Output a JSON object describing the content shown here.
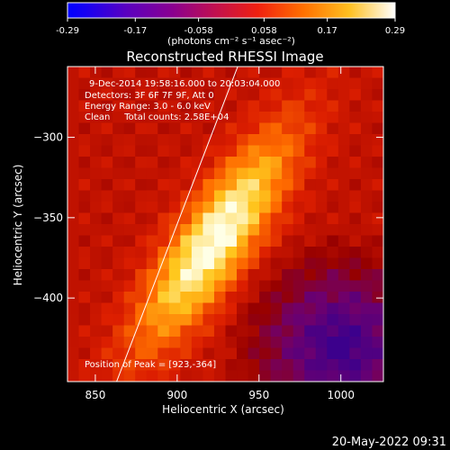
{
  "chart_data": {
    "type": "heatmap",
    "title": "Reconstructed RHESSI Image",
    "colorbar": {
      "ticks": [
        "-0.29",
        "-0.17",
        "-0.058",
        "0.058",
        "0.17",
        "0.29"
      ],
      "range": [
        -0.29,
        0.29
      ],
      "unit_label": "(photons cm⁻² s⁻¹ asec⁻²)"
    },
    "xlabel": "Heliocentric X (arcsec)",
    "ylabel": "Heliocentric Y (arcsec)",
    "xlim": [
      833,
      1026
    ],
    "ylim": [
      -452,
      -256
    ],
    "xticks": [
      850,
      900,
      950,
      1000
    ],
    "yticks": [
      -300,
      -350,
      -400
    ],
    "annotations": [
      "9-Dec-2014 19:58:16.000 to 20:03:04.000",
      "Detectors: 3F 6F 7F 9F, Att 0",
      "Energy Range: 3.0 - 6.0 keV",
      "Clean     Total counts: 2.58E+04"
    ],
    "peak_label": "Position of Peak = [923,-364]",
    "peak": [
      923,
      -364
    ],
    "limb_line": [
      [
        863,
        -452
      ],
      [
        937,
        -256
      ]
    ],
    "grid": false
  },
  "footer": {
    "timestamp": "20-May-2022 09:31"
  }
}
